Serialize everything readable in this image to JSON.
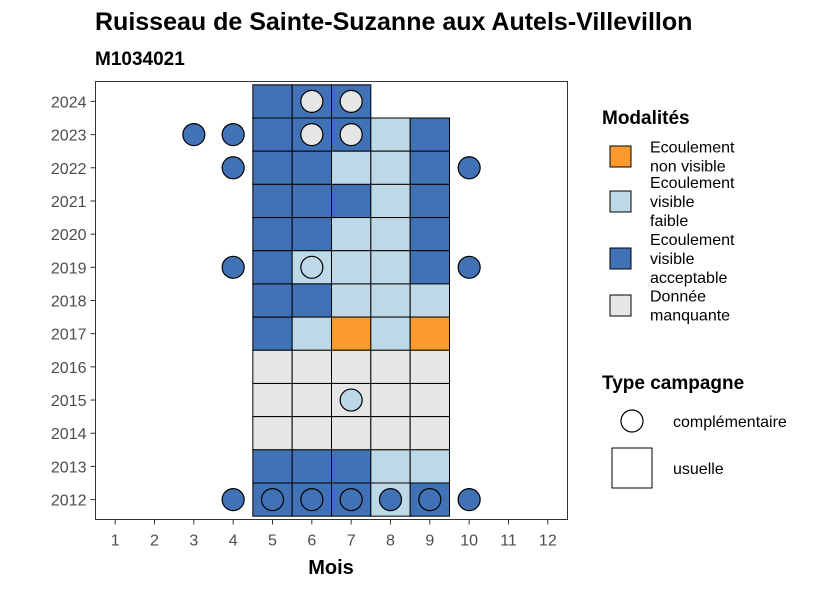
{
  "chart_data": {
    "type": "heatmap",
    "title": "Ruisseau de Sainte-Suzanne aux Autels-Villevillon",
    "subtitle": "M1034021",
    "xlabel": "Mois",
    "ylabel": "",
    "x_ticks": [
      "1",
      "2",
      "3",
      "4",
      "5",
      "6",
      "7",
      "8",
      "9",
      "10",
      "11",
      "12"
    ],
    "y_ticks": [
      "2012",
      "2013",
      "2014",
      "2015",
      "2016",
      "2017",
      "2018",
      "2019",
      "2020",
      "2021",
      "2022",
      "2023",
      "2024"
    ],
    "xlim": [
      0.5,
      12.5
    ],
    "ylim": [
      2011.4,
      2024.6
    ],
    "grid": false,
    "colors": {
      "Ecoulement non visible": "#fc9a2f",
      "Ecoulement visible faible": "#bdd8e7",
      "Ecoulement visible acceptable": "#4272b6",
      "Donnée manquante": "#e6e6e6"
    },
    "legend": {
      "position": "right",
      "modalites_title": "Modalités",
      "modalites": [
        {
          "key": "Ecoulement non visible",
          "lines": [
            "Ecoulement",
            "non visible"
          ]
        },
        {
          "key": "Ecoulement visible faible",
          "lines": [
            "Ecoulement",
            "visible",
            "faible"
          ]
        },
        {
          "key": "Ecoulement visible acceptable",
          "lines": [
            "Ecoulement",
            "visible",
            "acceptable"
          ]
        },
        {
          "key": "Donnée manquante",
          "lines": [
            "Donnée",
            "manquante"
          ]
        }
      ],
      "campagne_title": "Type campagne",
      "campagnes": [
        {
          "shape": "circle",
          "label": "complémentaire"
        },
        {
          "shape": "square",
          "label": "usuelle"
        }
      ]
    },
    "usuelle_tiles": [
      {
        "year": 2024,
        "month": 5,
        "value": "Ecoulement visible acceptable"
      },
      {
        "year": 2024,
        "month": 6,
        "value": "Ecoulement visible acceptable"
      },
      {
        "year": 2024,
        "month": 7,
        "value": "Ecoulement visible acceptable"
      },
      {
        "year": 2023,
        "month": 5,
        "value": "Ecoulement visible acceptable"
      },
      {
        "year": 2023,
        "month": 6,
        "value": "Ecoulement visible acceptable"
      },
      {
        "year": 2023,
        "month": 7,
        "value": "Ecoulement visible acceptable"
      },
      {
        "year": 2023,
        "month": 8,
        "value": "Ecoulement visible faible"
      },
      {
        "year": 2023,
        "month": 9,
        "value": "Ecoulement visible acceptable"
      },
      {
        "year": 2022,
        "month": 5,
        "value": "Ecoulement visible acceptable"
      },
      {
        "year": 2022,
        "month": 6,
        "value": "Ecoulement visible acceptable"
      },
      {
        "year": 2022,
        "month": 7,
        "value": "Ecoulement visible faible"
      },
      {
        "year": 2022,
        "month": 8,
        "value": "Ecoulement visible faible"
      },
      {
        "year": 2022,
        "month": 9,
        "value": "Ecoulement visible acceptable"
      },
      {
        "year": 2021,
        "month": 5,
        "value": "Ecoulement visible acceptable"
      },
      {
        "year": 2021,
        "month": 6,
        "value": "Ecoulement visible acceptable"
      },
      {
        "year": 2021,
        "month": 7,
        "value": "Ecoulement visible acceptable"
      },
      {
        "year": 2021,
        "month": 8,
        "value": "Ecoulement visible faible"
      },
      {
        "year": 2021,
        "month": 9,
        "value": "Ecoulement visible acceptable"
      },
      {
        "year": 2020,
        "month": 5,
        "value": "Ecoulement visible acceptable"
      },
      {
        "year": 2020,
        "month": 6,
        "value": "Ecoulement visible acceptable"
      },
      {
        "year": 2020,
        "month": 7,
        "value": "Ecoulement visible faible"
      },
      {
        "year": 2020,
        "month": 8,
        "value": "Ecoulement visible faible"
      },
      {
        "year": 2020,
        "month": 9,
        "value": "Ecoulement visible acceptable"
      },
      {
        "year": 2019,
        "month": 5,
        "value": "Ecoulement visible acceptable"
      },
      {
        "year": 2019,
        "month": 6,
        "value": "Ecoulement visible faible"
      },
      {
        "year": 2019,
        "month": 7,
        "value": "Ecoulement visible faible"
      },
      {
        "year": 2019,
        "month": 8,
        "value": "Ecoulement visible faible"
      },
      {
        "year": 2019,
        "month": 9,
        "value": "Ecoulement visible acceptable"
      },
      {
        "year": 2018,
        "month": 5,
        "value": "Ecoulement visible acceptable"
      },
      {
        "year": 2018,
        "month": 6,
        "value": "Ecoulement visible acceptable"
      },
      {
        "year": 2018,
        "month": 7,
        "value": "Ecoulement visible faible"
      },
      {
        "year": 2018,
        "month": 8,
        "value": "Ecoulement visible faible"
      },
      {
        "year": 2018,
        "month": 9,
        "value": "Ecoulement visible faible"
      },
      {
        "year": 2017,
        "month": 5,
        "value": "Ecoulement visible acceptable"
      },
      {
        "year": 2017,
        "month": 6,
        "value": "Ecoulement visible faible"
      },
      {
        "year": 2017,
        "month": 7,
        "value": "Ecoulement non visible"
      },
      {
        "year": 2017,
        "month": 8,
        "value": "Ecoulement visible faible"
      },
      {
        "year": 2017,
        "month": 9,
        "value": "Ecoulement non visible"
      },
      {
        "year": 2016,
        "month": 5,
        "value": "Donnée manquante"
      },
      {
        "year": 2016,
        "month": 6,
        "value": "Donnée manquante"
      },
      {
        "year": 2016,
        "month": 7,
        "value": "Donnée manquante"
      },
      {
        "year": 2016,
        "month": 8,
        "value": "Donnée manquante"
      },
      {
        "year": 2016,
        "month": 9,
        "value": "Donnée manquante"
      },
      {
        "year": 2015,
        "month": 5,
        "value": "Donnée manquante"
      },
      {
        "year": 2015,
        "month": 6,
        "value": "Donnée manquante"
      },
      {
        "year": 2015,
        "month": 7,
        "value": "Donnée manquante"
      },
      {
        "year": 2015,
        "month": 8,
        "value": "Donnée manquante"
      },
      {
        "year": 2015,
        "month": 9,
        "value": "Donnée manquante"
      },
      {
        "year": 2014,
        "month": 5,
        "value": "Donnée manquante"
      },
      {
        "year": 2014,
        "month": 6,
        "value": "Donnée manquante"
      },
      {
        "year": 2014,
        "month": 7,
        "value": "Donnée manquante"
      },
      {
        "year": 2014,
        "month": 8,
        "value": "Donnée manquante"
      },
      {
        "year": 2014,
        "month": 9,
        "value": "Donnée manquante"
      },
      {
        "year": 2013,
        "month": 5,
        "value": "Ecoulement visible acceptable"
      },
      {
        "year": 2013,
        "month": 6,
        "value": "Ecoulement visible acceptable"
      },
      {
        "year": 2013,
        "month": 7,
        "value": "Ecoulement visible acceptable"
      },
      {
        "year": 2013,
        "month": 8,
        "value": "Ecoulement visible faible"
      },
      {
        "year": 2013,
        "month": 9,
        "value": "Ecoulement visible faible"
      },
      {
        "year": 2012,
        "month": 5,
        "value": "Ecoulement visible acceptable"
      },
      {
        "year": 2012,
        "month": 6,
        "value": "Ecoulement visible acceptable"
      },
      {
        "year": 2012,
        "month": 7,
        "value": "Ecoulement visible acceptable"
      },
      {
        "year": 2012,
        "month": 8,
        "value": "Ecoulement visible faible"
      },
      {
        "year": 2012,
        "month": 9,
        "value": "Ecoulement visible acceptable"
      }
    ],
    "complementaire_points": [
      {
        "year": 2024,
        "month": 6,
        "value": "Donnée manquante"
      },
      {
        "year": 2024,
        "month": 7,
        "value": "Donnée manquante"
      },
      {
        "year": 2023,
        "month": 3,
        "value": "Ecoulement visible acceptable"
      },
      {
        "year": 2023,
        "month": 4,
        "value": "Ecoulement visible acceptable"
      },
      {
        "year": 2023,
        "month": 6,
        "value": "Donnée manquante"
      },
      {
        "year": 2023,
        "month": 7,
        "value": "Donnée manquante"
      },
      {
        "year": 2022,
        "month": 4,
        "value": "Ecoulement visible acceptable"
      },
      {
        "year": 2022,
        "month": 10,
        "value": "Ecoulement visible acceptable"
      },
      {
        "year": 2019,
        "month": 4,
        "value": "Ecoulement visible acceptable"
      },
      {
        "year": 2019,
        "month": 6,
        "value": "Ecoulement visible faible"
      },
      {
        "year": 2019,
        "month": 10,
        "value": "Ecoulement visible acceptable"
      },
      {
        "year": 2015,
        "month": 7,
        "value": "Ecoulement visible faible"
      },
      {
        "year": 2012,
        "month": 4,
        "value": "Ecoulement visible acceptable"
      },
      {
        "year": 2012,
        "month": 5,
        "value": "Ecoulement visible acceptable"
      },
      {
        "year": 2012,
        "month": 6,
        "value": "Ecoulement visible acceptable"
      },
      {
        "year": 2012,
        "month": 7,
        "value": "Ecoulement visible acceptable"
      },
      {
        "year": 2012,
        "month": 8,
        "value": "Ecoulement visible acceptable"
      },
      {
        "year": 2012,
        "month": 9,
        "value": "Ecoulement visible acceptable"
      },
      {
        "year": 2012,
        "month": 10,
        "value": "Ecoulement visible acceptable"
      }
    ]
  }
}
